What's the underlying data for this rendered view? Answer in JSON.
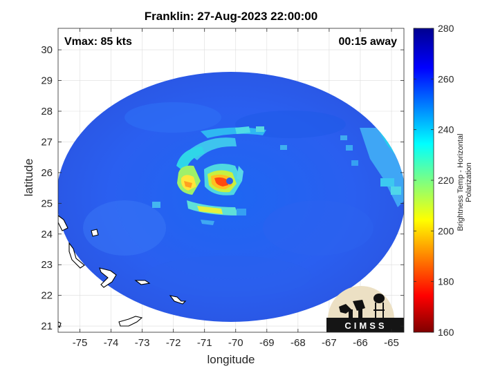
{
  "title": "Franklin: 27-Aug-2023 22:00:00",
  "vmax_label": "Vmax: 85 kts",
  "time_label": "00:15 away",
  "xlabel": "longitude",
  "ylabel": "latitude",
  "colorbar_label": "Brightness Temp - Horizontal Polarization",
  "logo_text": "CIMSS",
  "map_data": {
    "type": "heatmap",
    "x_ticks": [
      -75,
      -74,
      -73,
      -72,
      -71,
      -70,
      -69,
      -68,
      -67,
      -66,
      -65
    ],
    "y_ticks": [
      21,
      22,
      23,
      24,
      25,
      26,
      27,
      28,
      29,
      30
    ],
    "xlim": [
      -75.7,
      -64.6
    ],
    "ylim": [
      20.8,
      30.7
    ],
    "colorbar_ticks": [
      160,
      180,
      200,
      220,
      240,
      260,
      280
    ],
    "colorbar_range": [
      160,
      280
    ],
    "storm_center": {
      "lon": -70.5,
      "lat": 25.8
    }
  }
}
